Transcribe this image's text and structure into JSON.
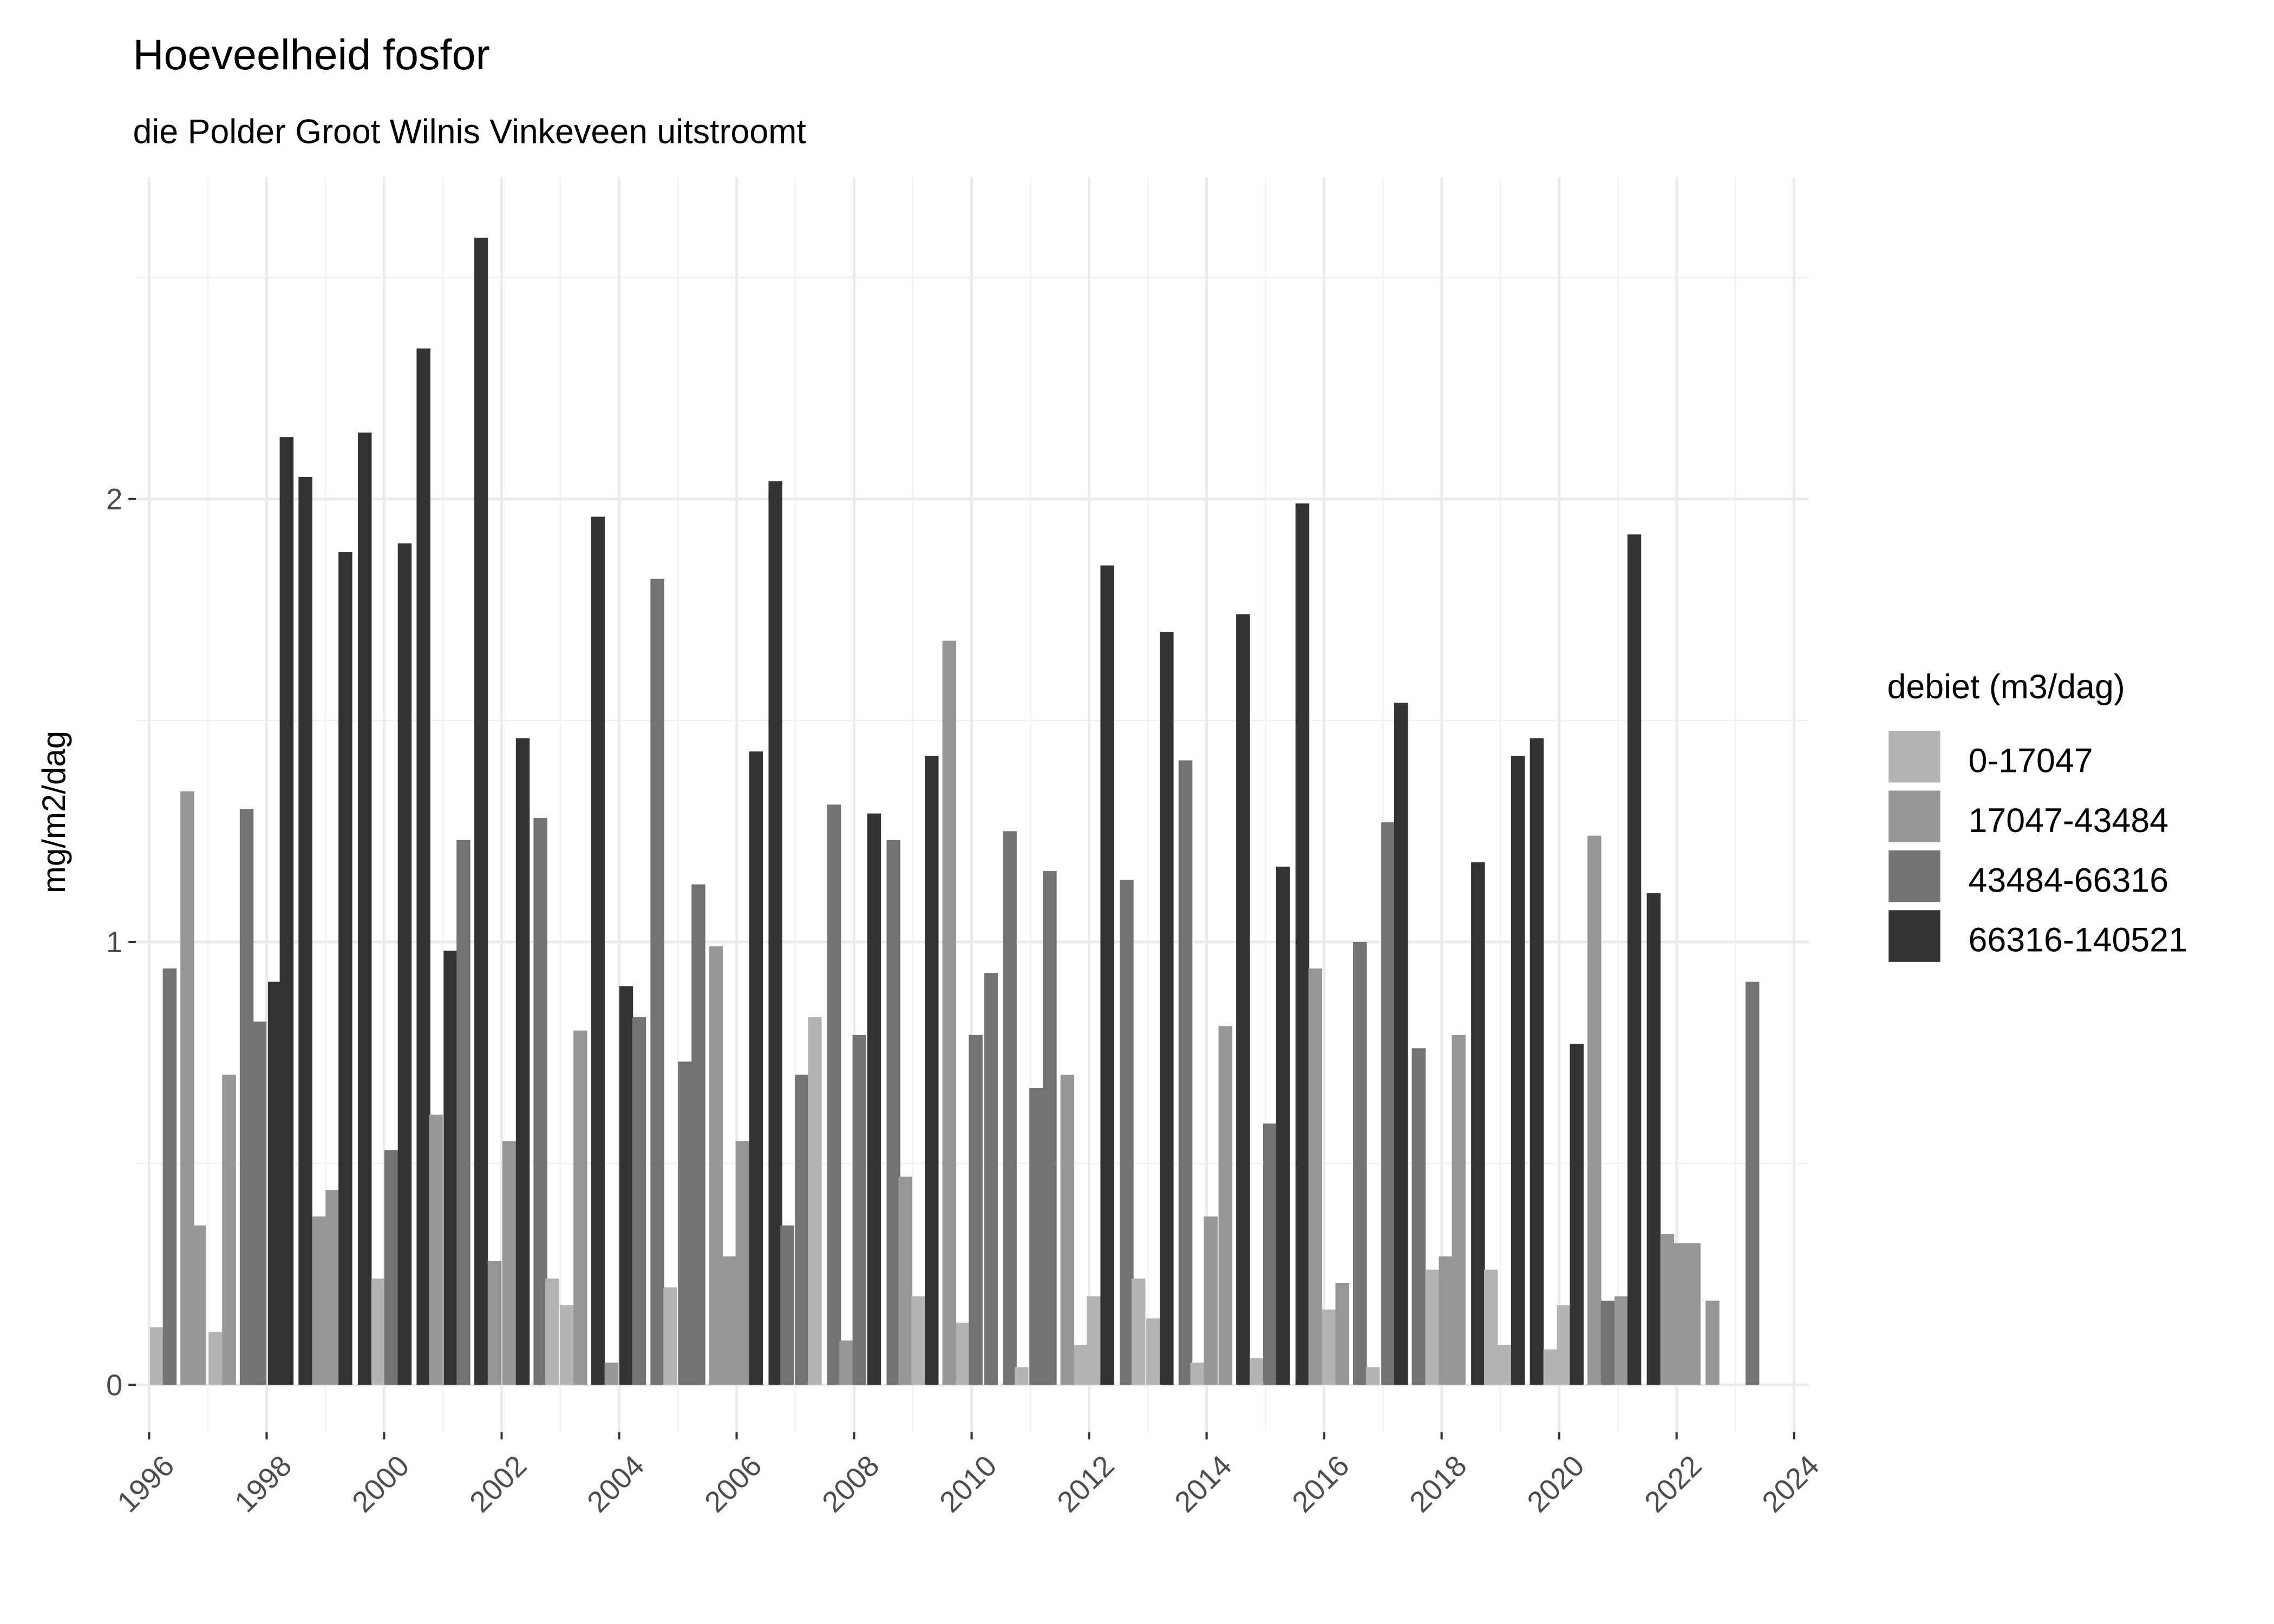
{
  "chart_data": {
    "type": "bar",
    "title": "Hoeveelheid fosfor",
    "subtitle": "die Polder Groot Wilnis Vinkeveen uitstroomt",
    "xlabel": "",
    "ylabel": "mg/m2/dag",
    "xlim": [
      1996,
      2024
    ],
    "ylim": [
      0,
      2.6
    ],
    "x_ticks": [
      "1996",
      "1998",
      "2000",
      "2002",
      "2004",
      "2006",
      "2008",
      "2010",
      "2012",
      "2014",
      "2016",
      "2018",
      "2020",
      "2022",
      "2024"
    ],
    "y_ticks": [
      "0",
      "1",
      "2"
    ],
    "grid": true,
    "legend": {
      "title": "debiet (m3/dag)",
      "placement": "right",
      "entries": [
        "0-17047",
        "17047-43484",
        "43484-66316",
        "66316-140521"
      ],
      "colors": [
        "#b3b3b3",
        "#969696",
        "#737373",
        "#333333"
      ]
    },
    "bars": {
      "x": [
        1996.13,
        1996.35,
        1996.65,
        1996.85,
        1997.13,
        1997.36,
        1997.66,
        1997.88,
        1998.14,
        1998.34,
        1998.66,
        1998.89,
        1999.12,
        1999.34,
        1999.67,
        1999.9,
        2000.12,
        2000.35,
        2000.67,
        2000.88,
        2001.13,
        2001.35,
        2001.65,
        2001.88,
        2002.13,
        2002.36,
        2002.66,
        2002.86,
        2003.11,
        2003.34,
        2003.64,
        2003.87,
        2004.12,
        2004.34,
        2004.65,
        2004.87,
        2005.12,
        2005.35,
        2005.65,
        2005.88,
        2006.1,
        2006.33,
        2006.66,
        2006.86,
        2007.11,
        2007.33,
        2007.66,
        2007.86,
        2008.09,
        2008.34,
        2008.67,
        2008.87,
        2009.09,
        2009.32,
        2009.62,
        2009.85,
        2010.07,
        2010.33,
        2010.65,
        2010.85,
        2011.1,
        2011.33,
        2011.63,
        2011.86,
        2012.08,
        2012.31,
        2012.64,
        2012.84,
        2013.09,
        2013.32,
        2013.64,
        2013.84,
        2014.07,
        2014.32,
        2014.62,
        2014.85,
        2015.08,
        2015.3,
        2015.63,
        2015.85,
        2016.08,
        2016.31,
        2016.61,
        2016.83,
        2017.09,
        2017.31,
        2017.61,
        2017.84,
        2018.07,
        2018.29,
        2018.62,
        2018.84,
        2019.07,
        2019.3,
        2019.62,
        2019.85,
        2020.08,
        2020.3,
        2020.6,
        2020.83,
        2021.06,
        2021.28,
        2021.61,
        2021.84,
        2022.06,
        2022.29,
        2022.61,
        2023.29
      ],
      "y": [
        0.13,
        0.94,
        1.34,
        0.36,
        0.12,
        0.7,
        1.3,
        0.82,
        0.91,
        2.14,
        2.05,
        0.38,
        0.44,
        1.88,
        2.15,
        0.24,
        0.53,
        1.9,
        2.34,
        0.61,
        0.98,
        1.23,
        2.59,
        0.28,
        0.55,
        1.46,
        1.28,
        0.24,
        0.18,
        0.8,
        1.96,
        0.05,
        0.9,
        0.83,
        1.82,
        0.22,
        0.73,
        1.13,
        0.99,
        0.29,
        0.55,
        1.43,
        2.04,
        0.36,
        0.7,
        0.83,
        1.31,
        0.1,
        0.79,
        1.29,
        1.23,
        0.47,
        0.2,
        1.42,
        1.68,
        0.14,
        0.79,
        0.93,
        1.25,
        0.04,
        0.67,
        1.16,
        0.7,
        0.09,
        0.2,
        1.85,
        1.14,
        0.24,
        0.15,
        1.7,
        1.41,
        0.05,
        0.38,
        0.81,
        1.74,
        0.06,
        0.59,
        1.17,
        1.99,
        0.94,
        0.17,
        0.23,
        1.0,
        0.04,
        1.27,
        1.54,
        0.76,
        0.26,
        0.29,
        0.79,
        1.18,
        0.26,
        0.09,
        1.42,
        1.46,
        0.08,
        0.18,
        0.77,
        1.24,
        0.19,
        0.2,
        1.92,
        1.11,
        0.34,
        0.32,
        0.32,
        0.19,
        0.91
      ],
      "class": [
        0,
        2,
        1,
        1,
        0,
        1,
        2,
        2,
        3,
        3,
        3,
        1,
        1,
        3,
        3,
        0,
        2,
        3,
        3,
        1,
        3,
        2,
        3,
        1,
        1,
        3,
        2,
        0,
        0,
        1,
        3,
        1,
        3,
        2,
        2,
        0,
        2,
        2,
        1,
        1,
        1,
        3,
        3,
        2,
        2,
        0,
        2,
        1,
        2,
        3,
        2,
        1,
        0,
        3,
        1,
        0,
        2,
        2,
        2,
        0,
        2,
        2,
        1,
        0,
        0,
        3,
        2,
        0,
        0,
        3,
        2,
        0,
        1,
        1,
        3,
        0,
        2,
        3,
        3,
        1,
        0,
        1,
        2,
        0,
        2,
        3,
        2,
        0,
        1,
        1,
        3,
        0,
        0,
        3,
        3,
        0,
        0,
        3,
        1,
        2,
        1,
        3,
        3,
        1,
        1,
        1,
        1,
        2
      ]
    }
  }
}
